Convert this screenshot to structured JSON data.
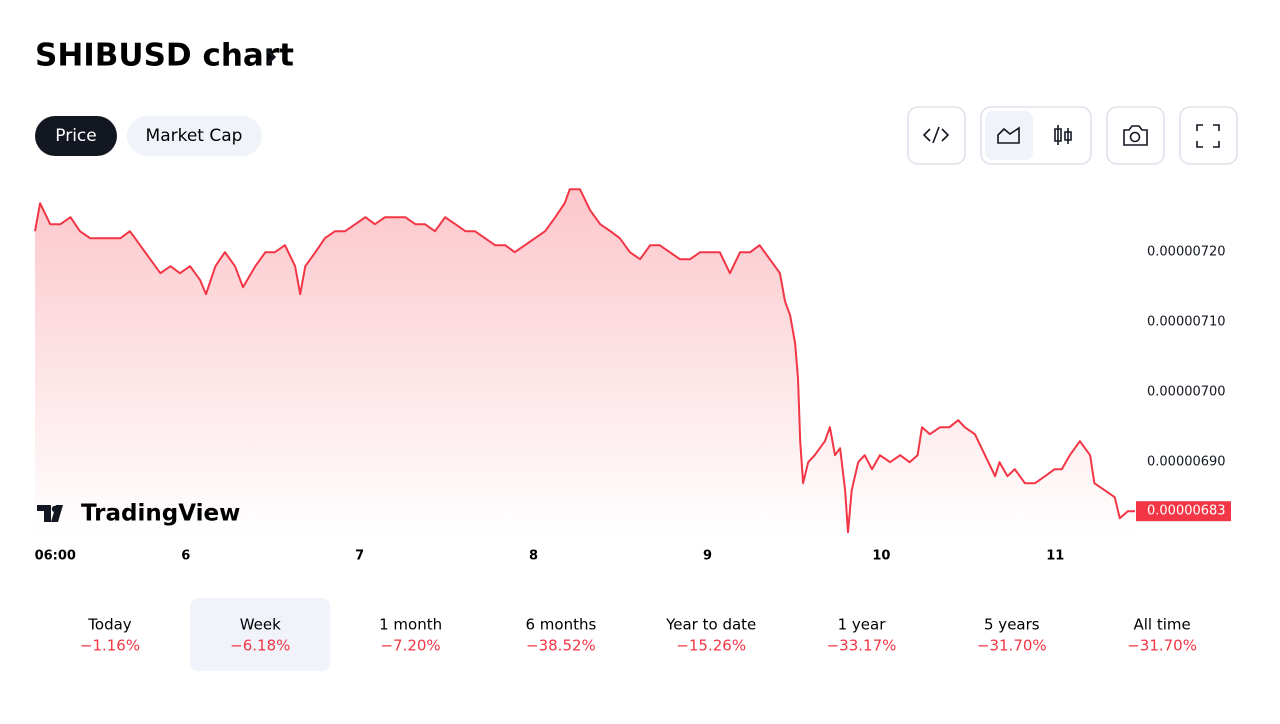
{
  "header": {
    "title": "SHIBUSD chart",
    "tabs": [
      "Price",
      "Market Cap"
    ]
  },
  "brand": "TradingView",
  "chart_data": {
    "type": "line",
    "x": [
      -2.8,
      -2.1,
      -0.7,
      0.7,
      2.1,
      3.4,
      4.8,
      6.2,
      7.6,
      9.0,
      10.3,
      11.7,
      13.1,
      14.5,
      15.9,
      17.2,
      18.6,
      20.0,
      20.8,
      22.1,
      23.4,
      24.8,
      25.9,
      27.6,
      29.0,
      30.3,
      31.7,
      33.1,
      33.8,
      34.5,
      35.9,
      37.2,
      38.6,
      40.0,
      41.4,
      42.8,
      44.1,
      45.5,
      46.9,
      48.3,
      49.7,
      51.0,
      52.4,
      53.8,
      55.2,
      56.6,
      57.9,
      59.3,
      60.7,
      62.1,
      63.4,
      64.8,
      66.2,
      67.6,
      69.0,
      70.3,
      71.0,
      72.4,
      73.8,
      75.2,
      76.6,
      77.9,
      79.3,
      80.7,
      82.1,
      83.4,
      84.8,
      86.2,
      87.6,
      89.0,
      90.3,
      91.7,
      93.1,
      94.5,
      95.9,
      97.2,
      98.6,
      100.0,
      100.7,
      101.4,
      102.1,
      102.5,
      102.8,
      103.2,
      103.9,
      104.8,
      106.2,
      106.9,
      107.6,
      108.3,
      109.0,
      109.4,
      109.9,
      110.8,
      111.7,
      112.7,
      113.8,
      115.2,
      116.6,
      117.9,
      119.0,
      119.6,
      120.7,
      122.1,
      123.4,
      124.6,
      125.5,
      126.9,
      128.3,
      129.7,
      130.3,
      131.4,
      132.4,
      133.8,
      135.2,
      136.6,
      137.9,
      138.9,
      140.0,
      141.4,
      142.8,
      143.4,
      144.8,
      146.2,
      146.9,
      148.0,
      149.0
    ],
    "series": [
      {
        "name": "SHIBUSD",
        "color": "#f23645",
        "values": [
          7.23e-06,
          7.27e-06,
          7.24e-06,
          7.24e-06,
          7.25e-06,
          7.23e-06,
          7.22e-06,
          7.22e-06,
          7.22e-06,
          7.22e-06,
          7.23e-06,
          7.21e-06,
          7.19e-06,
          7.17e-06,
          7.18e-06,
          7.17e-06,
          7.18e-06,
          7.16e-06,
          7.14e-06,
          7.18e-06,
          7.2e-06,
          7.18e-06,
          7.15e-06,
          7.18e-06,
          7.2e-06,
          7.2e-06,
          7.21e-06,
          7.18e-06,
          7.14e-06,
          7.18e-06,
          7.2e-06,
          7.22e-06,
          7.23e-06,
          7.23e-06,
          7.24e-06,
          7.25e-06,
          7.24e-06,
          7.25e-06,
          7.25e-06,
          7.25e-06,
          7.24e-06,
          7.24e-06,
          7.23e-06,
          7.25e-06,
          7.24e-06,
          7.23e-06,
          7.23e-06,
          7.22e-06,
          7.21e-06,
          7.21e-06,
          7.2e-06,
          7.21e-06,
          7.22e-06,
          7.23e-06,
          7.25e-06,
          7.27e-06,
          7.29e-06,
          7.29e-06,
          7.26e-06,
          7.24e-06,
          7.23e-06,
          7.22e-06,
          7.2e-06,
          7.19e-06,
          7.21e-06,
          7.21e-06,
          7.2e-06,
          7.19e-06,
          7.19e-06,
          7.2e-06,
          7.2e-06,
          7.2e-06,
          7.17e-06,
          7.2e-06,
          7.2e-06,
          7.21e-06,
          7.19e-06,
          7.17e-06,
          7.13e-06,
          7.11e-06,
          7.07e-06,
          7.02e-06,
          6.93e-06,
          6.87e-06,
          6.9e-06,
          6.91e-06,
          6.93e-06,
          6.95e-06,
          6.91e-06,
          6.92e-06,
          6.86e-06,
          6.8e-06,
          6.86e-06,
          6.9e-06,
          6.91e-06,
          6.89e-06,
          6.91e-06,
          6.9e-06,
          6.91e-06,
          6.9e-06,
          6.91e-06,
          6.95e-06,
          6.94e-06,
          6.95e-06,
          6.95e-06,
          6.96e-06,
          6.95e-06,
          6.94e-06,
          6.91e-06,
          6.88e-06,
          6.9e-06,
          6.88e-06,
          6.89e-06,
          6.87e-06,
          6.87e-06,
          6.88e-06,
          6.89e-06,
          6.89e-06,
          6.91e-06,
          6.93e-06,
          6.91e-06,
          6.87e-06,
          6.86e-06,
          6.85e-06,
          6.82e-06,
          6.83e-06,
          6.83e-06
        ]
      }
    ],
    "xlim": [
      -2.8,
      149
    ],
    "xticks": [
      {
        "value": 0,
        "label": "06:00"
      },
      {
        "value": 18,
        "label": "6"
      },
      {
        "value": 42,
        "label": "7"
      },
      {
        "value": 66,
        "label": "8"
      },
      {
        "value": 90,
        "label": "9"
      },
      {
        "value": 114,
        "label": "10"
      },
      {
        "value": 138,
        "label": "11"
      }
    ],
    "ylim": [
      6.796e-06,
      7.296e-06
    ],
    "yticks": [
      {
        "value": 6.9e-06,
        "label": "0.00000690"
      },
      {
        "value": 7e-06,
        "label": "0.00000700"
      },
      {
        "value": 7.1e-06,
        "label": "0.00000710"
      },
      {
        "value": 7.2e-06,
        "label": "0.00000720"
      }
    ],
    "price_label": {
      "value": 6.83e-06,
      "label": "0.00000683"
    }
  },
  "periods": [
    {
      "label": "Today",
      "change": "−1.16%"
    },
    {
      "label": "Week",
      "change": "−6.18%"
    },
    {
      "label": "1 month",
      "change": "−7.20%"
    },
    {
      "label": "6 months",
      "change": "−38.52%"
    },
    {
      "label": "Year to date",
      "change": "−15.26%"
    },
    {
      "label": "1 year",
      "change": "−33.17%"
    },
    {
      "label": "5 years",
      "change": "−31.70%"
    },
    {
      "label": "All time",
      "change": "−31.70%"
    }
  ]
}
